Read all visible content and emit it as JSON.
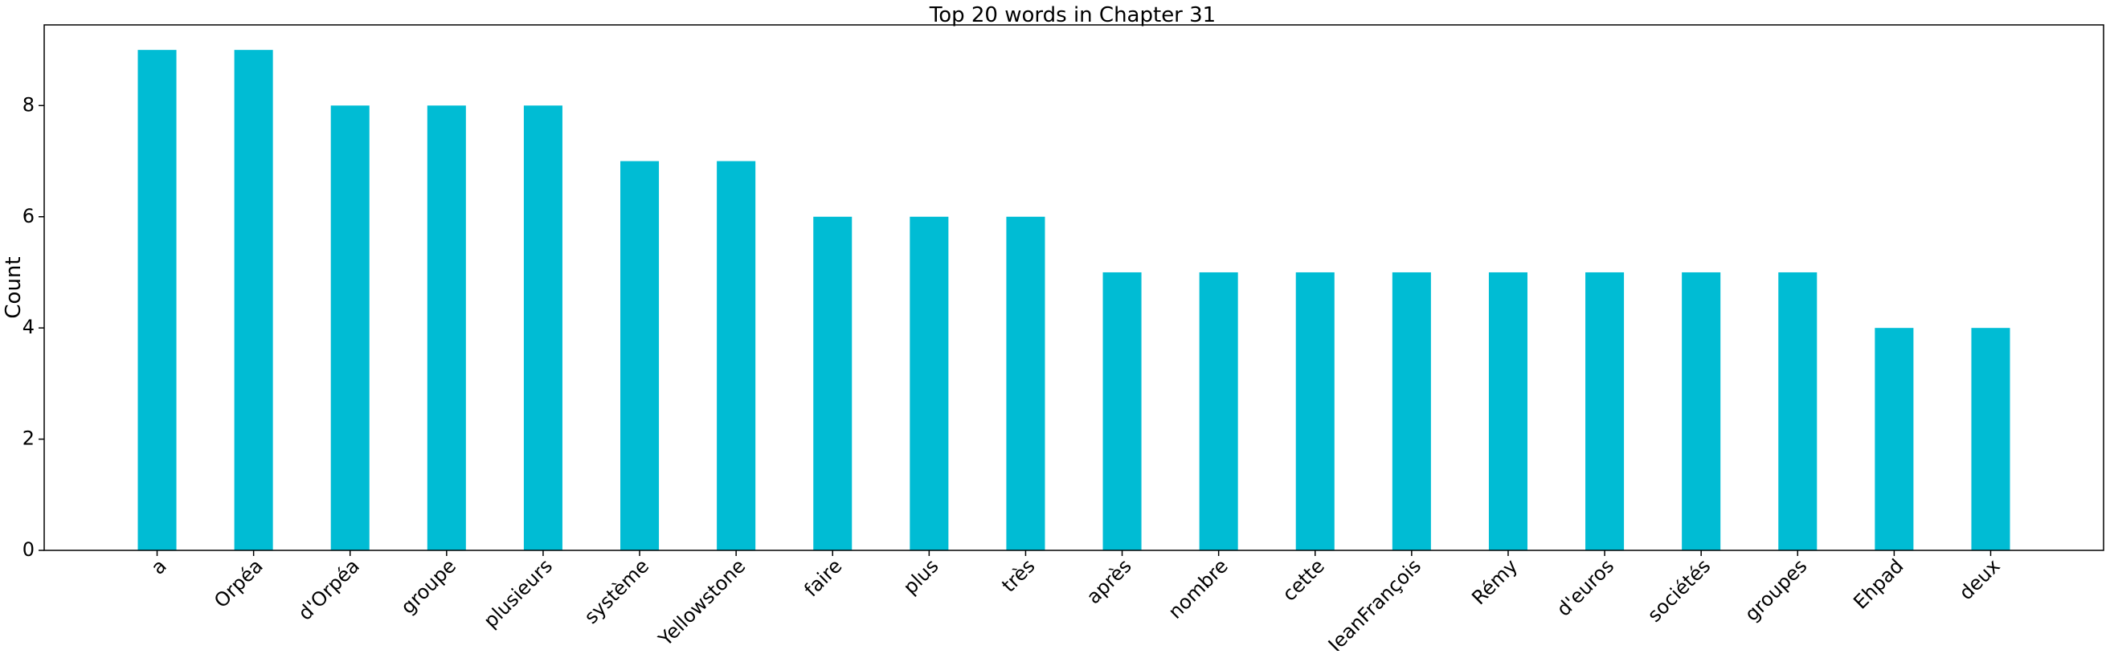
{
  "chart_data": {
    "type": "bar",
    "title": "Top 20 words in Chapter 31",
    "xlabel": "",
    "ylabel": "Count",
    "categories": [
      "a",
      "Orpéa",
      "d'Orpéa",
      "groupe",
      "plusieurs",
      "système",
      "Yellowstone",
      "faire",
      "plus",
      "très",
      "après",
      "nombre",
      "cette",
      "JeanFrançois",
      "Rémy",
      "d'euros",
      "sociétés",
      "groupes",
      "Ehpad",
      "deux"
    ],
    "values": [
      9,
      9,
      8,
      8,
      8,
      7,
      7,
      6,
      6,
      6,
      5,
      5,
      5,
      5,
      5,
      5,
      5,
      5,
      4,
      4
    ],
    "ylim": [
      0,
      9.45
    ],
    "yticks": [
      0,
      2,
      4,
      6,
      8
    ],
    "grid": false,
    "legend": "none",
    "bar_color": "#00bcd4"
  }
}
